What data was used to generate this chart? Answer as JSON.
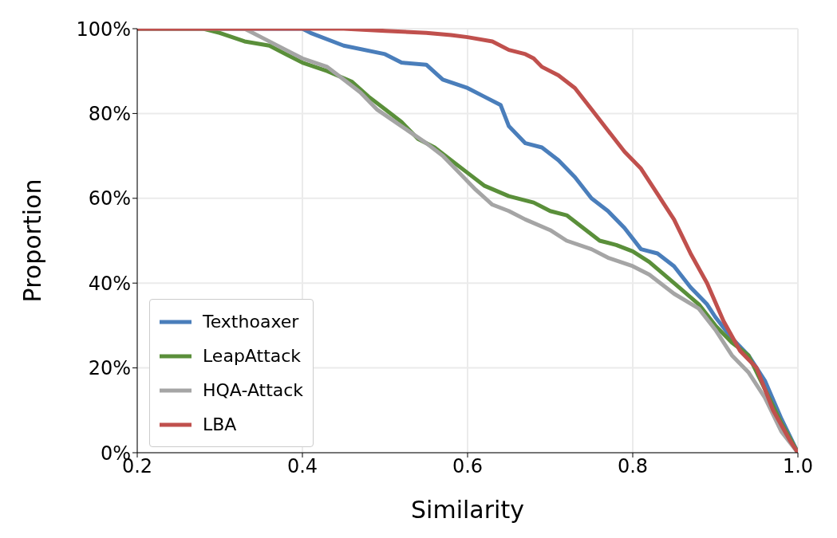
{
  "chart_data": {
    "type": "line",
    "xlabel": "Similarity",
    "ylabel": "Proportion",
    "xlim": [
      0.2,
      1.0
    ],
    "ylim": [
      0,
      100
    ],
    "xticks": [
      0.2,
      0.4,
      0.6,
      0.8,
      {
        "value": 1.0,
        "label": "1.0"
      }
    ],
    "yticks": [
      {
        "value": 0,
        "label": "0%"
      },
      {
        "value": 20,
        "label": "20%"
      },
      {
        "value": 40,
        "label": "40%"
      },
      {
        "value": 60,
        "label": "60%"
      },
      {
        "value": 80,
        "label": "80%"
      },
      {
        "value": 100,
        "label": "100%"
      }
    ],
    "grid": true,
    "legend": "bottom left",
    "line_style": "solid",
    "marker": "none",
    "series": [
      {
        "name": "Texthoaxer",
        "color": "#4a7ebb",
        "x": [
          0.2,
          0.4,
          0.41,
          0.45,
          0.5,
          0.52,
          0.55,
          0.57,
          0.6,
          0.62,
          0.64,
          0.65,
          0.67,
          0.69,
          0.71,
          0.73,
          0.75,
          0.77,
          0.79,
          0.81,
          0.83,
          0.85,
          0.87,
          0.89,
          0.9,
          0.92,
          0.94,
          0.96,
          0.98,
          1.0
        ],
        "values": [
          100,
          100,
          99,
          96,
          94,
          92,
          91.5,
          88,
          86,
          84,
          82,
          77,
          73,
          72,
          69,
          65,
          60,
          57,
          53,
          48,
          47,
          44,
          39,
          35,
          32,
          27,
          23,
          17,
          8,
          0
        ]
      },
      {
        "name": "LeapAttack",
        "color": "#5a8f3a",
        "x": [
          0.2,
          0.28,
          0.3,
          0.33,
          0.36,
          0.38,
          0.4,
          0.43,
          0.46,
          0.48,
          0.5,
          0.52,
          0.54,
          0.56,
          0.58,
          0.6,
          0.62,
          0.65,
          0.68,
          0.7,
          0.72,
          0.74,
          0.76,
          0.78,
          0.8,
          0.82,
          0.85,
          0.88,
          0.9,
          0.92,
          0.94,
          0.96,
          0.98,
          1.0
        ],
        "values": [
          100,
          100,
          99,
          97,
          96,
          94,
          92,
          90,
          87.5,
          84,
          81,
          78,
          74,
          72,
          69,
          66,
          63,
          60.5,
          59,
          57,
          56,
          53,
          50,
          49,
          47.5,
          45,
          40,
          35,
          30,
          26,
          23,
          15,
          7,
          0
        ]
      },
      {
        "name": "HQA-Attack",
        "color": "#a5a5a5",
        "x": [
          0.2,
          0.33,
          0.35,
          0.38,
          0.4,
          0.43,
          0.45,
          0.47,
          0.49,
          0.52,
          0.55,
          0.57,
          0.59,
          0.61,
          0.63,
          0.65,
          0.67,
          0.7,
          0.72,
          0.75,
          0.77,
          0.8,
          0.82,
          0.85,
          0.88,
          0.9,
          0.92,
          0.94,
          0.96,
          0.98,
          1.0
        ],
        "values": [
          100,
          100,
          98,
          95,
          93,
          91,
          88,
          85,
          81,
          77,
          73,
          70,
          66,
          62,
          58.5,
          57,
          55,
          52.5,
          50,
          48,
          46,
          44,
          42,
          37.5,
          34,
          29,
          23,
          19,
          13,
          5,
          0
        ]
      },
      {
        "name": "LBA",
        "color": "#c0504d",
        "x": [
          0.2,
          0.45,
          0.5,
          0.55,
          0.58,
          0.6,
          0.63,
          0.65,
          0.67,
          0.68,
          0.69,
          0.71,
          0.73,
          0.75,
          0.77,
          0.79,
          0.81,
          0.83,
          0.85,
          0.87,
          0.89,
          0.91,
          0.93,
          0.95,
          0.97,
          0.99,
          1.0
        ],
        "values": [
          100,
          100,
          99.5,
          99,
          98.5,
          98,
          97,
          95,
          94,
          93,
          91,
          89,
          86,
          81,
          76,
          71,
          67,
          61,
          55,
          47,
          40,
          31,
          24,
          20,
          10,
          3,
          0
        ]
      }
    ]
  }
}
